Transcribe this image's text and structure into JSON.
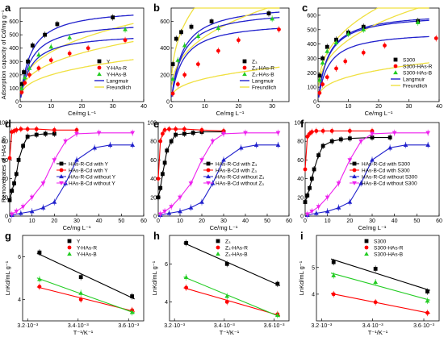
{
  "chart_data": [
    {
      "id": "a",
      "type": "scatter",
      "panel_label": "a",
      "xlabel": "Ce/mg L⁻¹",
      "ylabel": "Adsorption capacity of Cd/mg g⁻¹",
      "xlim": [
        0,
        40
      ],
      "ylim": [
        0,
        700
      ],
      "xticks": [
        0,
        10,
        20,
        30,
        40
      ],
      "yticks": [
        0,
        100,
        200,
        300,
        400,
        500,
        600
      ],
      "series": [
        {
          "name": "Y",
          "color": "#000000",
          "marker": "square",
          "x": [
            0.5,
            1.2,
            2.5,
            4,
            8,
            12,
            30
          ],
          "y": [
            130,
            220,
            300,
            420,
            500,
            580,
            630
          ]
        },
        {
          "name": "Y-HAs-R",
          "color": "#ff0000",
          "marker": "circle",
          "x": [
            0.5,
            1.5,
            3,
            6,
            10,
            16,
            22,
            34
          ],
          "y": [
            70,
            140,
            200,
            250,
            310,
            360,
            400,
            460
          ]
        },
        {
          "name": "Y-HAs-B",
          "color": "#22cc22",
          "marker": "triangle",
          "x": [
            0.5,
            1.5,
            3,
            6,
            10,
            16,
            34
          ],
          "y": [
            100,
            180,
            250,
            350,
            410,
            480,
            540
          ]
        }
      ],
      "fit_lines": [
        {
          "name": "Langmuir",
          "color": "#2020cc"
        },
        {
          "name": "Freundlich",
          "color": "#f0e040"
        }
      ]
    },
    {
      "id": "b",
      "type": "scatter",
      "panel_label": "b",
      "xlabel": "Ce/mg L⁻¹",
      "ylabel": "",
      "xlim": [
        0,
        35
      ],
      "ylim": [
        0,
        700
      ],
      "xticks": [
        0,
        10,
        20,
        30
      ],
      "yticks": [
        0,
        200,
        400,
        600
      ],
      "series": [
        {
          "name": "Z₃",
          "color": "#000000",
          "marker": "square",
          "x": [
            0.5,
            1.5,
            3,
            6,
            12,
            29
          ],
          "y": [
            280,
            470,
            520,
            560,
            600,
            660
          ]
        },
        {
          "name": "Z₃-HAs-R",
          "color": "#ff0000",
          "marker": "circle",
          "x": [
            0.5,
            2,
            4,
            8,
            14,
            20,
            32
          ],
          "y": [
            60,
            130,
            200,
            280,
            380,
            460,
            540
          ]
        },
        {
          "name": "Z₃-HAs-B",
          "color": "#22cc22",
          "marker": "triangle",
          "x": [
            0.5,
            2,
            4,
            8,
            14,
            30
          ],
          "y": [
            170,
            310,
            420,
            490,
            550,
            620
          ]
        }
      ],
      "fit_lines": [
        {
          "name": "Langmuir",
          "color": "#2020cc"
        },
        {
          "name": "Freundlich",
          "color": "#f0e040"
        }
      ]
    },
    {
      "id": "c",
      "type": "scatter",
      "panel_label": "c",
      "xlabel": "Ce/mg L⁻¹",
      "ylabel": "",
      "xlim": [
        0,
        40
      ],
      "ylim": [
        0,
        650
      ],
      "xticks": [
        0,
        10,
        20,
        30,
        40
      ],
      "yticks": [
        0,
        100,
        200,
        300,
        400,
        500,
        600
      ],
      "series": [
        {
          "name": "S300",
          "color": "#000000",
          "marker": "square",
          "x": [
            0.5,
            1.5,
            3,
            6,
            10,
            15,
            33
          ],
          "y": [
            180,
            300,
            380,
            430,
            480,
            520,
            560
          ]
        },
        {
          "name": "S300-HAs-R",
          "color": "#ff0000",
          "marker": "circle",
          "x": [
            0.5,
            1.5,
            3,
            6,
            9,
            15,
            22,
            39
          ],
          "y": [
            60,
            120,
            170,
            230,
            280,
            340,
            390,
            440
          ]
        },
        {
          "name": "S300-HAs-B",
          "color": "#22cc22",
          "marker": "triangle",
          "x": [
            0.5,
            1.5,
            3,
            6,
            10,
            15,
            33
          ],
          "y": [
            150,
            270,
            350,
            410,
            470,
            500,
            550
          ]
        }
      ],
      "fit_lines": [
        {
          "name": "Langmuir",
          "color": "#2020cc"
        },
        {
          "name": "Freundlich",
          "color": "#f0e040"
        }
      ]
    },
    {
      "id": "d",
      "type": "line",
      "panel_label": "d",
      "xlabel": "Ce/mg L⁻¹",
      "ylabel": "Remove rates of HAs /%",
      "xlim": [
        0,
        60
      ],
      "ylim": [
        0,
        100
      ],
      "xticks": [
        0,
        10,
        20,
        30,
        40,
        50,
        60
      ],
      "yticks": [
        0,
        20,
        40,
        60,
        80,
        100
      ],
      "series": [
        {
          "name": "HAs-R-Cd with Y",
          "color": "#000000",
          "marker": "square",
          "x": [
            0,
            1,
            2,
            3,
            4,
            6,
            8,
            12,
            16,
            20
          ],
          "y": [
            17,
            27,
            35,
            45,
            60,
            75,
            85,
            87,
            88,
            88
          ]
        },
        {
          "name": "HAs-B-Cd with Y",
          "color": "#ff0000",
          "marker": "circle",
          "x": [
            0,
            1,
            2,
            3,
            5,
            8,
            12,
            20,
            30
          ],
          "y": [
            62,
            90,
            91,
            92,
            93,
            93,
            93,
            92,
            92
          ]
        },
        {
          "name": "HAs-R-Cd without Y",
          "color": "#2020cc",
          "marker": "triangle",
          "x": [
            1,
            5,
            10,
            15,
            20,
            25,
            30,
            38,
            45,
            55
          ],
          "y": [
            1,
            3,
            5,
            9,
            15,
            35,
            60,
            73,
            76,
            76
          ]
        },
        {
          "name": "HAs-B-Cd without Y",
          "color": "#ee22ee",
          "marker": "triangle-down",
          "x": [
            1,
            3,
            6,
            10,
            15,
            20,
            25,
            30,
            40,
            55
          ],
          "y": [
            2,
            5,
            10,
            20,
            35,
            60,
            80,
            88,
            89,
            89
          ]
        }
      ]
    },
    {
      "id": "e",
      "type": "line",
      "panel_label": "e",
      "xlabel": "Ce/mg L⁻¹",
      "ylabel": "",
      "xlim": [
        0,
        60
      ],
      "ylim": [
        0,
        100
      ],
      "xticks": [
        0,
        10,
        20,
        30,
        40,
        50,
        60
      ],
      "yticks": [
        0,
        20,
        40,
        60,
        80,
        100
      ],
      "series": [
        {
          "name": "HAs-R-Cd with Z₃",
          "color": "#000000",
          "marker": "square",
          "x": [
            0,
            1,
            2,
            3,
            4,
            6,
            8,
            12,
            16,
            20,
            30
          ],
          "y": [
            20,
            30,
            45,
            57,
            70,
            80,
            87,
            88,
            89,
            90,
            90
          ]
        },
        {
          "name": "HAs-B-Cd with Z₃",
          "color": "#ff0000",
          "marker": "circle",
          "x": [
            0,
            1,
            2,
            3,
            5,
            8,
            12,
            20,
            30
          ],
          "y": [
            40,
            80,
            88,
            92,
            93,
            93,
            93,
            92,
            91
          ]
        },
        {
          "name": "HAs-R-Cd without Z₃",
          "color": "#2020cc",
          "marker": "triangle",
          "x": [
            1,
            5,
            10,
            15,
            20,
            25,
            30,
            38,
            45,
            55
          ],
          "y": [
            1,
            3,
            5,
            9,
            15,
            35,
            60,
            73,
            76,
            76
          ]
        },
        {
          "name": "HAs-B-Cd without Z₃",
          "color": "#ee22ee",
          "marker": "triangle-down",
          "x": [
            1,
            3,
            6,
            10,
            15,
            20,
            25,
            30,
            40,
            55
          ],
          "y": [
            2,
            5,
            10,
            20,
            35,
            60,
            80,
            88,
            89,
            89
          ]
        }
      ]
    },
    {
      "id": "f",
      "type": "line",
      "panel_label": "f",
      "xlabel": "Ce/mg L⁻¹",
      "ylabel": "",
      "xlim": [
        0,
        60
      ],
      "ylim": [
        0,
        100
      ],
      "xticks": [
        0,
        10,
        20,
        30,
        40,
        50,
        60
      ],
      "yticks": [
        0,
        20,
        40,
        60,
        80,
        100
      ],
      "series": [
        {
          "name": "HAs-R-Cd with S300",
          "color": "#000000",
          "marker": "square",
          "x": [
            0,
            1,
            2,
            3,
            4,
            6,
            8,
            12,
            16,
            20,
            30,
            38
          ],
          "y": [
            15,
            22,
            30,
            40,
            50,
            65,
            75,
            80,
            82,
            83,
            84,
            84
          ]
        },
        {
          "name": "HAs-B-Cd with S300",
          "color": "#ff0000",
          "marker": "circle",
          "x": [
            0,
            1,
            2,
            3,
            5,
            8,
            12,
            20,
            30
          ],
          "y": [
            50,
            85,
            88,
            90,
            91,
            91,
            91,
            91,
            91
          ]
        },
        {
          "name": "HAs-R-Cd without S300",
          "color": "#2020cc",
          "marker": "triangle",
          "x": [
            1,
            5,
            10,
            15,
            20,
            25,
            30,
            38,
            45,
            55
          ],
          "y": [
            1,
            3,
            5,
            9,
            15,
            35,
            60,
            73,
            76,
            76
          ]
        },
        {
          "name": "HAs-B-Cd without S300",
          "color": "#ee22ee",
          "marker": "triangle-down",
          "x": [
            1,
            3,
            6,
            10,
            15,
            20,
            25,
            30,
            40,
            55
          ],
          "y": [
            2,
            5,
            10,
            20,
            35,
            60,
            80,
            88,
            89,
            89
          ]
        }
      ]
    },
    {
      "id": "g",
      "type": "scatter",
      "panel_label": "g",
      "xlabel": "T⁻¹/K⁻¹",
      "ylabel": "LnKd/mL g⁻¹",
      "xlim": [
        0.00318,
        0.00366
      ],
      "ylim": [
        3,
        7
      ],
      "xticks": [
        0.0032,
        0.0034,
        0.0036
      ],
      "xtick_labels": [
        "3.2·10⁻³",
        "3.4·10⁻³",
        "3.6·10⁻³"
      ],
      "yticks": [
        4,
        6
      ],
      "ytick_labels": [
        "4",
        "6"
      ],
      "series": [
        {
          "name": "Y",
          "color": "#000000",
          "marker": "square",
          "x": [
            0.003247,
            0.003411,
            0.003614
          ],
          "y": [
            6.2,
            5.05,
            4.15
          ]
        },
        {
          "name": "Y-HAs-R",
          "color": "#ff0000",
          "marker": "circle",
          "x": [
            0.003247,
            0.003411,
            0.003614
          ],
          "y": [
            4.6,
            4.0,
            3.5
          ]
        },
        {
          "name": "Y-HAs-B",
          "color": "#22cc22",
          "marker": "triangle",
          "x": [
            0.003247,
            0.003411,
            0.003614
          ],
          "y": [
            4.95,
            4.3,
            3.4
          ]
        }
      ],
      "trend": true
    },
    {
      "id": "h",
      "type": "scatter",
      "panel_label": "h",
      "xlabel": "T⁻¹/K⁻¹",
      "ylabel": "LnKd/mL g⁻¹",
      "xlim": [
        0.00318,
        0.00366
      ],
      "ylim": [
        3,
        7.5
      ],
      "xticks": [
        0.0032,
        0.0034,
        0.0036
      ],
      "xtick_labels": [
        "3.2·10⁻³",
        "3.4·10⁻³",
        "3.6·10⁻³"
      ],
      "yticks": [
        4,
        6
      ],
      "ytick_labels": [
        "4",
        "6"
      ],
      "series": [
        {
          "name": "Z₃",
          "color": "#000000",
          "marker": "square",
          "x": [
            0.003247,
            0.003411,
            0.003614
          ],
          "y": [
            7.1,
            6.0,
            4.95
          ]
        },
        {
          "name": "Z₃-HAs-R",
          "color": "#ff0000",
          "marker": "circle",
          "x": [
            0.003247,
            0.003411,
            0.003614
          ],
          "y": [
            4.75,
            4.0,
            3.35
          ]
        },
        {
          "name": "Z₃-HAs-B",
          "color": "#22cc22",
          "marker": "triangle",
          "x": [
            0.003247,
            0.003411,
            0.003614
          ],
          "y": [
            5.3,
            4.3,
            3.3
          ]
        }
      ],
      "trend": true
    },
    {
      "id": "i",
      "type": "scatter",
      "panel_label": "i",
      "xlabel": "T⁻¹/K⁻¹",
      "ylabel": "LnKd/mL g⁻¹",
      "xlim": [
        0.00318,
        0.00366
      ],
      "ylim": [
        3,
        6.2
      ],
      "xticks": [
        0.0032,
        0.0034,
        0.0036
      ],
      "xtick_labels": [
        "3.2·10⁻³",
        "3.4·10⁻³",
        "3.6·10⁻³"
      ],
      "yticks": [
        4,
        5
      ],
      "ytick_labels": [
        "4",
        "5"
      ],
      "series": [
        {
          "name": "S300",
          "color": "#000000",
          "marker": "square",
          "x": [
            0.003247,
            0.003411,
            0.003614
          ],
          "y": [
            5.2,
            4.95,
            4.1
          ]
        },
        {
          "name": "S300-HAs-R",
          "color": "#ff0000",
          "marker": "circle",
          "x": [
            0.003247,
            0.003411,
            0.003614
          ],
          "y": [
            4.0,
            3.7,
            3.3
          ]
        },
        {
          "name": "S300-HAs-B",
          "color": "#22cc22",
          "marker": "triangle",
          "x": [
            0.003247,
            0.003411,
            0.003614
          ],
          "y": [
            4.7,
            4.45,
            3.75
          ]
        }
      ],
      "trend": true
    }
  ]
}
